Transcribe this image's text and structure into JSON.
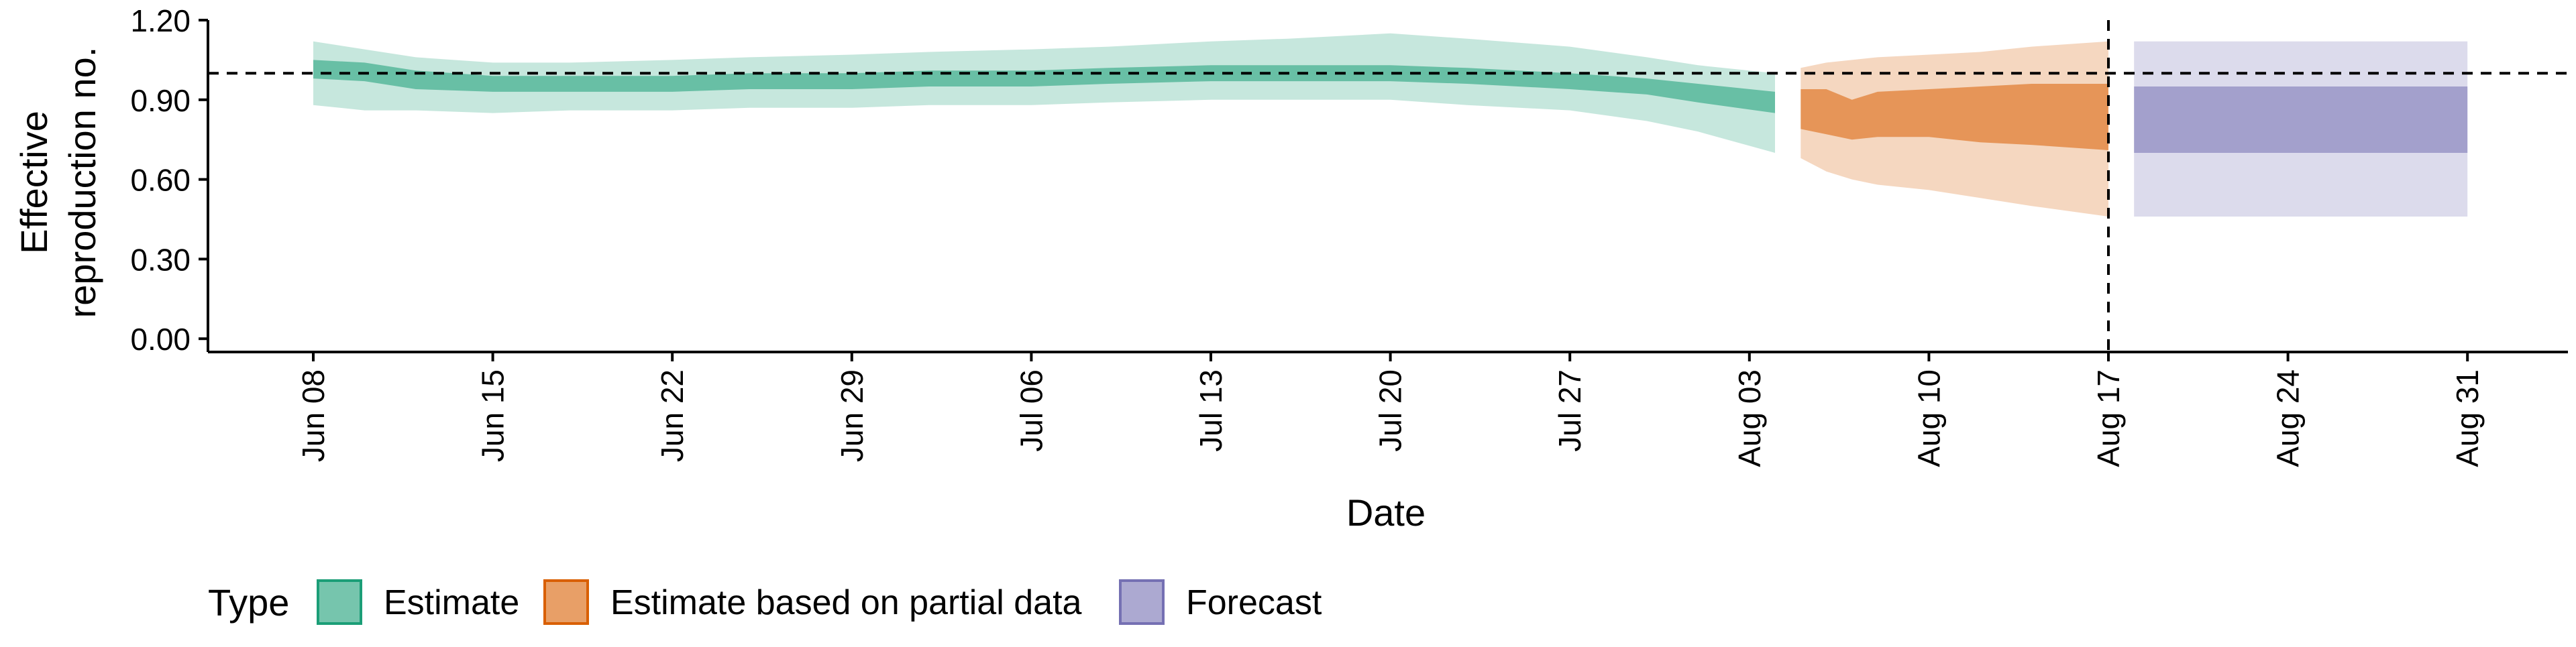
{
  "chart_data": {
    "type": "area",
    "xlabel": "Date",
    "ylabel_lines": [
      "Effective",
      "reproduction no."
    ],
    "x_ticks": [
      "Jun 08",
      "Jun 15",
      "Jun 22",
      "Jun 29",
      "Jul 06",
      "Jul 13",
      "Jul 20",
      "Jul 27",
      "Aug 03",
      "Aug 10",
      "Aug 17",
      "Aug 24",
      "Aug 31"
    ],
    "y_ticks": [
      "0.00",
      "0.30",
      "0.60",
      "0.90",
      "1.20"
    ],
    "ylim": [
      -0.05,
      1.2
    ],
    "reference_line_y": 1.0,
    "reference_line_x": "Aug 17",
    "legend": {
      "title": "Type",
      "placement": "bottom-left",
      "items": [
        {
          "label": "Estimate",
          "color": "#1b9e77"
        },
        {
          "label": "Estimate based on partial data",
          "color": "#d95f02"
        },
        {
          "label": "Forecast",
          "color": "#7570b3"
        }
      ]
    },
    "series": [
      {
        "type_label": "Estimate",
        "color": "#1b9e77",
        "x": [
          "2020-06-08",
          "2020-06-10",
          "2020-06-12",
          "2020-06-15",
          "2020-06-18",
          "2020-06-22",
          "2020-06-25",
          "2020-06-29",
          "2020-07-02",
          "2020-07-06",
          "2020-07-09",
          "2020-07-13",
          "2020-07-16",
          "2020-07-20",
          "2020-07-23",
          "2020-07-27",
          "2020-07-30",
          "2020-08-01",
          "2020-08-04"
        ],
        "median_low": [
          0.98,
          0.97,
          0.94,
          0.93,
          0.93,
          0.93,
          0.94,
          0.94,
          0.95,
          0.95,
          0.96,
          0.97,
          0.97,
          0.97,
          0.96,
          0.94,
          0.92,
          0.89,
          0.85
        ],
        "median_high": [
          1.05,
          1.04,
          1.01,
          0.99,
          0.99,
          0.99,
          1.0,
          1.0,
          1.01,
          1.01,
          1.02,
          1.03,
          1.03,
          1.03,
          1.02,
          1.0,
          0.98,
          0.96,
          0.93
        ],
        "ci_low": [
          0.88,
          0.86,
          0.86,
          0.85,
          0.86,
          0.86,
          0.87,
          0.87,
          0.88,
          0.88,
          0.89,
          0.9,
          0.9,
          0.9,
          0.88,
          0.86,
          0.82,
          0.78,
          0.7
        ],
        "ci_high": [
          1.12,
          1.09,
          1.06,
          1.04,
          1.04,
          1.05,
          1.06,
          1.07,
          1.08,
          1.09,
          1.1,
          1.12,
          1.13,
          1.15,
          1.13,
          1.1,
          1.06,
          1.03,
          1.0
        ]
      },
      {
        "type_label": "Estimate based on partial data",
        "color": "#d95f02",
        "x": [
          "2020-08-05",
          "2020-08-06",
          "2020-08-07",
          "2020-08-08",
          "2020-08-10",
          "2020-08-12",
          "2020-08-14",
          "2020-08-17"
        ],
        "median_low": [
          0.79,
          0.77,
          0.75,
          0.76,
          0.76,
          0.74,
          0.73,
          0.71
        ],
        "median_high": [
          0.94,
          0.94,
          0.9,
          0.93,
          0.94,
          0.95,
          0.96,
          0.96
        ],
        "ci_low": [
          0.68,
          0.63,
          0.6,
          0.58,
          0.56,
          0.53,
          0.5,
          0.46
        ],
        "ci_high": [
          1.02,
          1.04,
          1.05,
          1.06,
          1.07,
          1.08,
          1.1,
          1.12
        ]
      },
      {
        "type_label": "Forecast",
        "color": "#7570b3",
        "x": [
          "2020-08-18",
          "2020-08-31"
        ],
        "median_low": [
          0.7,
          0.7
        ],
        "median_high": [
          0.95,
          0.95
        ],
        "ci_low": [
          0.46,
          0.46
        ],
        "ci_high": [
          1.12,
          1.12
        ]
      }
    ]
  }
}
